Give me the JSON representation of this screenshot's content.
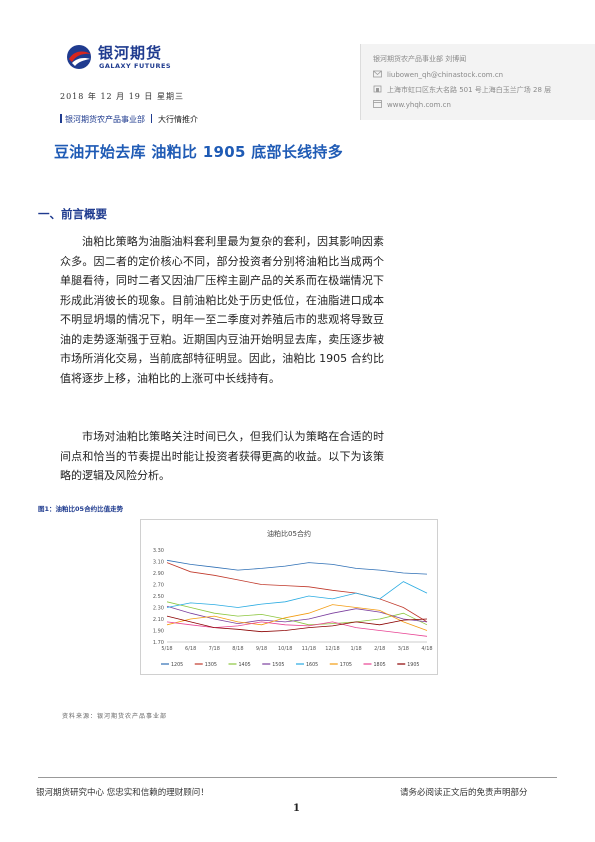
{
  "header": {
    "logo_cn": "银河期货",
    "logo_en": "GALAXY FUTURES",
    "contact": [
      {
        "icon": "person-icon",
        "text": "银河期货农产品事业部    刘博闻"
      },
      {
        "icon": "email-icon",
        "text": "liubowen_qh@chinastock.com.cn"
      },
      {
        "icon": "location-icon",
        "text": "上海市虹口区东大名路 501 号上海白玉兰广场 28 层"
      },
      {
        "icon": "web-icon",
        "text": "www.yhqh.com.cn"
      }
    ],
    "date": "2018 年 12 月 19 日   星期三",
    "dept": "银河期货农产品事业部",
    "category": "大行情推介"
  },
  "title": "豆油开始去库  油粕比 1905 底部长线持多",
  "section_title": "一、前言概要",
  "paragraphs": [
    "油粕比策略为油脂油料套利里最为复杂的套利，因其影响因素众多。因二者的定价核心不同，部分投资者分别将油粕比当成两个单腿看待，同时二者又因油厂压榨主副产品的关系而在极端情况下形成此消彼长的现象。目前油粕比处于历史低位，在油脂进口成本不明显坍塌的情况下，明年一至二季度对养殖后市的悲观将导致豆油的走势逐渐强于豆粕。近期国内豆油开始明显去库，卖压逐步被市场所消化交易，当前底部特征明显。因此，油粕比 1905 合约比值将逐步上移，油粕比的上涨可中长线持有。",
    "市场对油粕比策略关注时间已久，但我们认为策略在合适的时间点和恰当的节奏提出时能让投资者获得更高的收益。以下为该策略的逻辑及风险分析。"
  ],
  "figure_label": "图1：油粕比05合约比值走势",
  "chart_data": {
    "type": "line",
    "title": "油粕比05合约",
    "xlabel": "",
    "ylabel": "",
    "categories": [
      "5/18",
      "6/18",
      "7/18",
      "8/18",
      "9/18",
      "10/18",
      "11/18",
      "12/18",
      "1/18",
      "2/18",
      "3/18",
      "4/18"
    ],
    "ylim": [
      1.7,
      3.3
    ],
    "yticks": [
      "1.70",
      "1.90",
      "2.10",
      "2.30",
      "2.50",
      "2.70",
      "2.90",
      "3.10",
      "3.30"
    ],
    "legend_position": "bottom",
    "series": [
      {
        "name": "1205",
        "color": "#2e6fb5",
        "values": [
          3.12,
          3.05,
          3.0,
          2.95,
          2.98,
          3.02,
          3.08,
          3.05,
          2.98,
          2.95,
          2.9,
          2.88
        ]
      },
      {
        "name": "1305",
        "color": "#c0392b",
        "values": [
          3.08,
          2.92,
          2.86,
          2.78,
          2.7,
          2.68,
          2.66,
          2.6,
          2.55,
          2.45,
          2.3,
          2.05
        ]
      },
      {
        "name": "1405",
        "color": "#8dc63f",
        "values": [
          2.4,
          2.3,
          2.2,
          2.15,
          2.18,
          2.1,
          2.0,
          2.02,
          2.05,
          2.1,
          2.2,
          2.0
        ]
      },
      {
        "name": "1505",
        "color": "#7b3f9e",
        "values": [
          2.32,
          2.2,
          2.1,
          2.02,
          2.08,
          2.05,
          2.1,
          2.2,
          2.28,
          2.22,
          2.1,
          2.05
        ]
      },
      {
        "name": "1605",
        "color": "#29abe2",
        "values": [
          2.3,
          2.38,
          2.35,
          2.3,
          2.36,
          2.4,
          2.5,
          2.45,
          2.55,
          2.45,
          2.75,
          2.55
        ]
      },
      {
        "name": "1705",
        "color": "#f39c12",
        "values": [
          2.0,
          2.1,
          2.15,
          2.05,
          2.0,
          2.12,
          2.2,
          2.35,
          2.3,
          2.25,
          2.05,
          1.9
        ]
      },
      {
        "name": "1805",
        "color": "#e84393",
        "values": [
          2.05,
          2.0,
          1.95,
          1.98,
          2.05,
          2.0,
          1.98,
          2.05,
          1.95,
          1.9,
          1.85,
          1.8
        ]
      },
      {
        "name": "1905",
        "color": "#8b0000",
        "values": [
          2.15,
          2.05,
          1.95,
          1.92,
          1.88,
          1.9,
          1.95,
          1.98,
          2.05,
          2.0,
          2.08,
          2.1
        ]
      }
    ]
  },
  "source": "资料来源：银河期货农产品事业部",
  "footer": {
    "left": "银河期货研究中心  您忠实和信赖的理财顾问！",
    "right": "请务必阅读正文后的免责声明部分",
    "page": "1"
  }
}
